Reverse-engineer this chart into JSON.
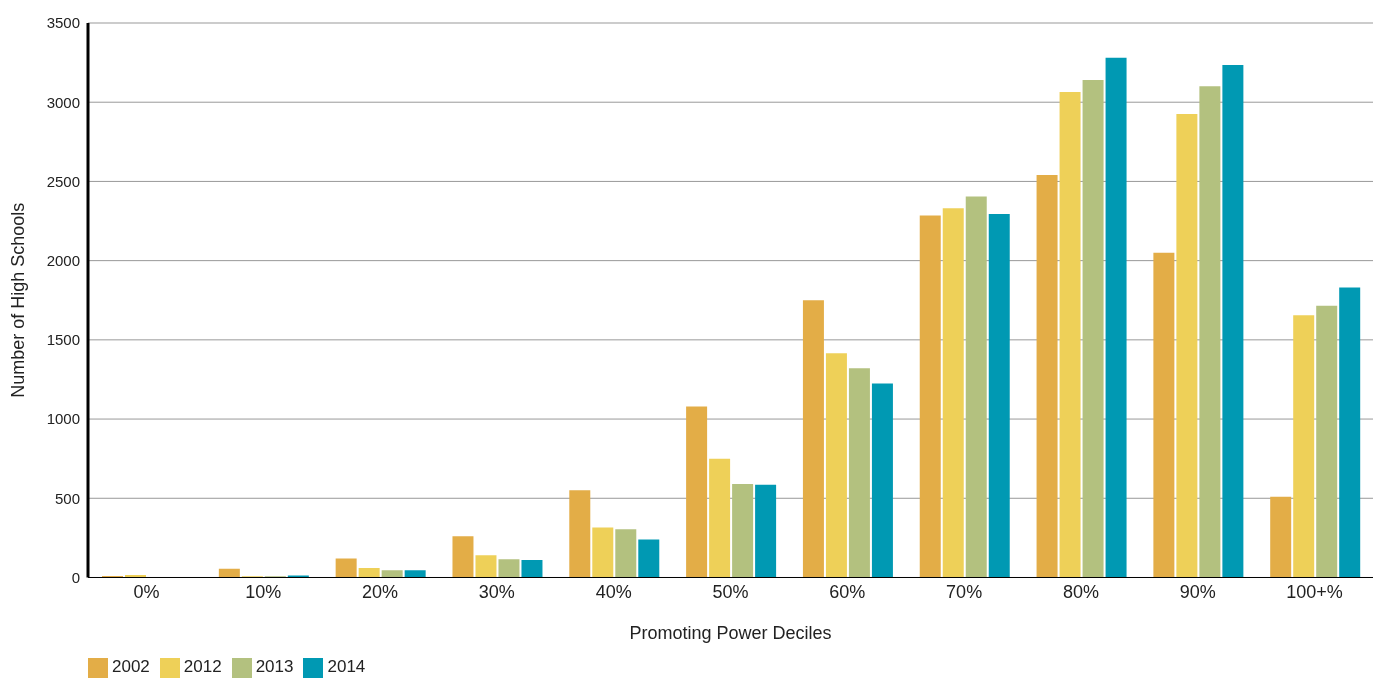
{
  "chart_data": {
    "type": "bar",
    "xlabel": "Promoting Power Deciles",
    "ylabel": "Number of High Schools",
    "categories": [
      "0%",
      "10%",
      "20%",
      "30%",
      "40%",
      "50%",
      "60%",
      "70%",
      "80%",
      "90%",
      "100+%"
    ],
    "series": [
      {
        "name": "2002",
        "color": "#e3ad47",
        "values": [
          10,
          55,
          120,
          260,
          550,
          1080,
          1750,
          2285,
          2540,
          2050,
          510
        ]
      },
      {
        "name": "2012",
        "color": "#eed058",
        "values": [
          15,
          8,
          60,
          140,
          315,
          750,
          1415,
          2330,
          3065,
          2925,
          1655
        ]
      },
      {
        "name": "2013",
        "color": "#b3c17f",
        "values": [
          0,
          8,
          45,
          115,
          305,
          590,
          1320,
          2405,
          3140,
          3100,
          1715
        ]
      },
      {
        "name": "2014",
        "color": "#0099b3",
        "values": [
          0,
          12,
          45,
          110,
          240,
          585,
          1225,
          2295,
          3280,
          3235,
          1830
        ]
      }
    ],
    "ylim": [
      0,
      3500
    ],
    "yticks": [
      0,
      500,
      1000,
      1500,
      2000,
      2500,
      3000,
      3500
    ],
    "grid": "y",
    "legend": "bottom left"
  }
}
